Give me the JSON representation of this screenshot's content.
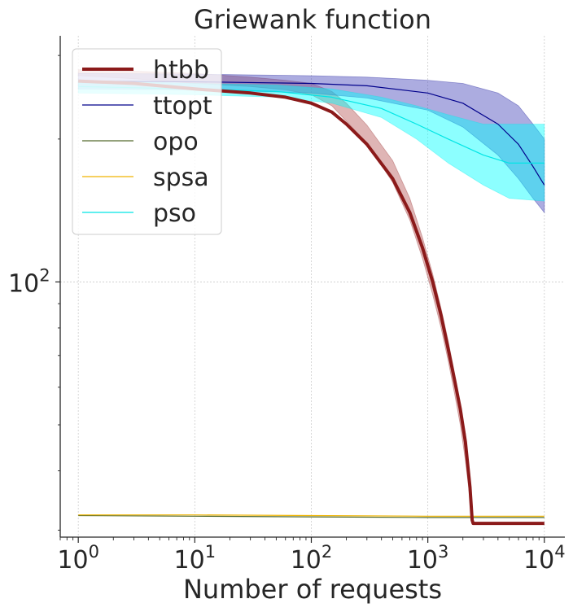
{
  "chart_data": {
    "type": "line",
    "title": "Griewank function",
    "xlabel": "Number of requests",
    "ylabel": "",
    "xscale": "log",
    "yscale": "log",
    "xlim": [
      0.7,
      15000
    ],
    "ylim": [
      29,
      330
    ],
    "x_ticks": [
      {
        "value": 1,
        "base": "10",
        "exp": "0"
      },
      {
        "value": 10,
        "base": "10",
        "exp": "1"
      },
      {
        "value": 100,
        "base": "10",
        "exp": "2"
      },
      {
        "value": 1000,
        "base": "10",
        "exp": "3"
      },
      {
        "value": 10000,
        "base": "10",
        "exp": "4"
      }
    ],
    "y_ticks": [
      {
        "value": 100,
        "base": "10",
        "exp": "2"
      }
    ],
    "grid": true,
    "legend_position": "top-left",
    "series": [
      {
        "name": "htbb",
        "color": "#8b1a1a",
        "band_color": "#b85a5a",
        "line_width": 4,
        "x": [
          1,
          3,
          10,
          30,
          60,
          100,
          150,
          200,
          300,
          500,
          700,
          900,
          1100,
          1300,
          1500,
          1700,
          1900,
          2100,
          2300,
          2400,
          2450,
          3000,
          10000
        ],
        "y": [
          265,
          262,
          255,
          250,
          245,
          238,
          228,
          215,
          195,
          165,
          140,
          118,
          100,
          85,
          72,
          62,
          54,
          46,
          37,
          31.5,
          31,
          31,
          31
        ],
        "lower": [
          272,
          268,
          262,
          258,
          254,
          248,
          235,
          218,
          196,
          162,
          135,
          112,
          94,
          80,
          68,
          58,
          50,
          42,
          35,
          31,
          31,
          31,
          31
        ],
        "upper": [
          280,
          278,
          275,
          270,
          266,
          262,
          252,
          238,
          214,
          180,
          150,
          124,
          104,
          88,
          75,
          64,
          55,
          48,
          38,
          32,
          31,
          31,
          31
        ]
      },
      {
        "name": "ttopt",
        "color": "#00008b",
        "band_color": "#4848bb",
        "line_width": 1.2,
        "x": [
          1,
          10,
          100,
          300,
          1000,
          2000,
          4000,
          6000,
          8000,
          10000
        ],
        "y": [
          265,
          264,
          262,
          259,
          250,
          238,
          215,
          195,
          175,
          160
        ],
        "lower": [
          255,
          254,
          250,
          244,
          230,
          212,
          185,
          165,
          150,
          140
        ],
        "upper": [
          275,
          274,
          272,
          270,
          266,
          262,
          250,
          235,
          215,
          200
        ]
      },
      {
        "name": "opo",
        "color": "#556b2f",
        "line_width": 1.2,
        "x": [
          1,
          10,
          100,
          1000,
          10000
        ],
        "y": [
          32.2,
          32.1,
          32.0,
          31.9,
          31.9
        ]
      },
      {
        "name": "spsa",
        "color": "#f0b400",
        "line_width": 1.2,
        "x": [
          1,
          10,
          100,
          1000,
          10000
        ],
        "y": [
          32.3,
          32.3,
          32.2,
          32.1,
          32.1
        ]
      },
      {
        "name": "pso",
        "color": "#00e5e5",
        "band_color": "#00ffff",
        "line_width": 1.2,
        "x": [
          1,
          10,
          50,
          150,
          400,
          800,
          1500,
          3000,
          5000,
          10000
        ],
        "y": [
          258,
          255,
          252,
          245,
          232,
          215,
          200,
          185,
          178,
          178
        ],
        "lower": [
          250,
          248,
          245,
          238,
          222,
          200,
          178,
          160,
          150,
          148
        ],
        "upper": [
          266,
          262,
          260,
          255,
          245,
          235,
          225,
          215,
          215,
          215
        ]
      }
    ]
  }
}
